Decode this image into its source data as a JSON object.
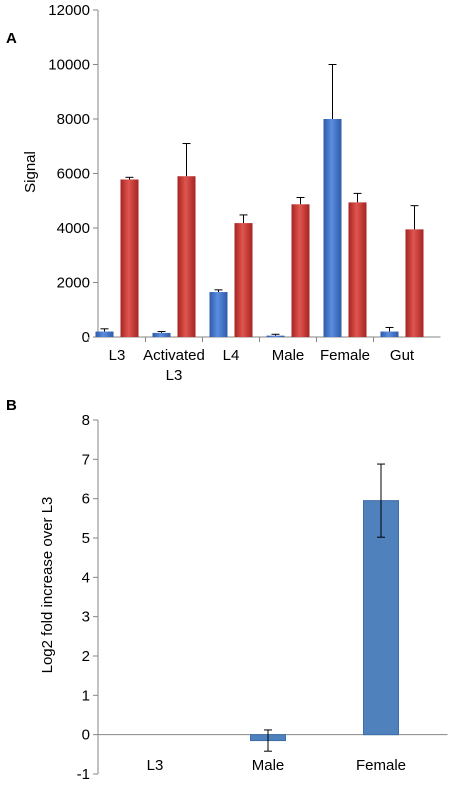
{
  "chart_data": [
    {
      "panel_label": "A",
      "type": "bar",
      "categories": [
        [
          "L3"
        ],
        [
          "Activated",
          "L3"
        ],
        [
          "L4"
        ],
        [
          "Male"
        ],
        [
          "Female"
        ],
        [
          "Gut"
        ]
      ],
      "series": [
        {
          "color": "#3F6FC6",
          "values": [
            200,
            150,
            1650,
            50,
            8000,
            200
          ],
          "errors": [
            100,
            50,
            80,
            50,
            2000,
            150
          ]
        },
        {
          "color": "#C0332F",
          "values": [
            5780,
            5900,
            4180,
            4870,
            4940,
            3950
          ],
          "errors": [
            80,
            1200,
            300,
            250,
            330,
            870
          ]
        }
      ],
      "ylabel": "Signal",
      "ylim": [
        0,
        12000
      ],
      "yticks": [
        0,
        2000,
        4000,
        6000,
        8000,
        10000,
        12000
      ],
      "grid": false
    },
    {
      "panel_label": "B",
      "type": "bar",
      "categories": [
        [
          "L3"
        ],
        [
          "Male"
        ],
        [
          "Female"
        ]
      ],
      "series": [
        {
          "color": "#4F81BD",
          "values": [
            0,
            -0.15,
            5.95
          ],
          "errors": [
            0,
            0.27,
            0.93
          ]
        }
      ],
      "ylabel": "Log2 fold increase over L3",
      "ylim": [
        -1,
        8
      ],
      "yticks": [
        -1,
        0,
        1,
        2,
        3,
        4,
        5,
        6,
        7,
        8
      ],
      "grid": false
    }
  ]
}
